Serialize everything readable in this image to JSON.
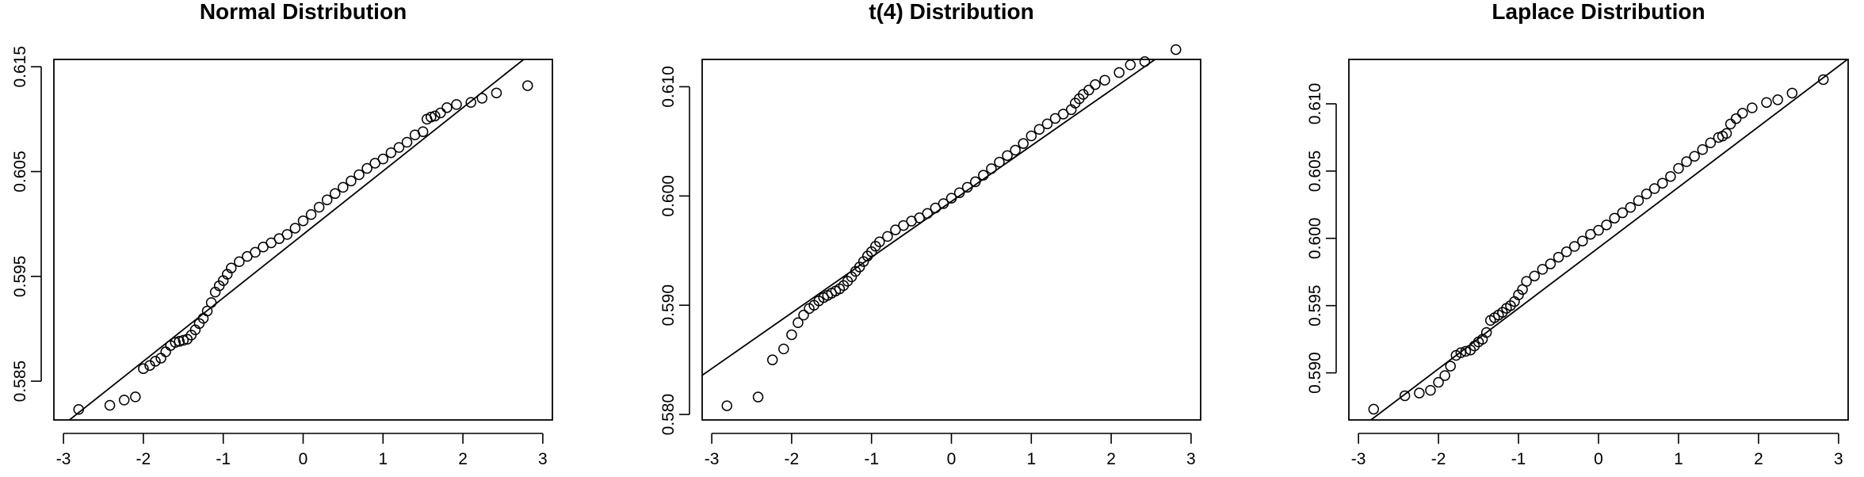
{
  "chart_data": [
    {
      "type": "scatter",
      "title": "Normal Distribution",
      "xlabel": "",
      "ylabel": "",
      "xlim": [
        -3.12,
        3.12
      ],
      "ylim": [
        0.5813,
        0.6157
      ],
      "xticks": [
        -3,
        -2,
        -1,
        0,
        1,
        2,
        3
      ],
      "xtick_labels": [
        "-3",
        "-2",
        "-1",
        "0",
        "1",
        "2",
        "3"
      ],
      "yticks": [
        0.585,
        0.595,
        0.605,
        0.615
      ],
      "ytick_labels": [
        "0.585",
        "0.595",
        "0.605",
        "0.615"
      ],
      "reference_line": {
        "intercept": 0.599,
        "slope": 0.00605
      },
      "points_x": [
        -2.81,
        -2.42,
        -2.24,
        -2.1,
        -2.0,
        -1.92,
        -1.85,
        -1.78,
        -1.72,
        -1.66,
        -1.6,
        -1.55,
        -1.5,
        -1.45,
        -1.4,
        -1.35,
        -1.3,
        -1.25,
        -1.2,
        -1.15,
        -1.1,
        -1.05,
        -1.0,
        -0.95,
        -0.9,
        -0.8,
        -0.7,
        -0.6,
        -0.5,
        -0.4,
        -0.3,
        -0.2,
        -0.1,
        0.0,
        0.1,
        0.2,
        0.3,
        0.4,
        0.5,
        0.6,
        0.7,
        0.8,
        0.9,
        1.0,
        1.1,
        1.2,
        1.3,
        1.4,
        1.5,
        1.55,
        1.6,
        1.65,
        1.72,
        1.8,
        1.92,
        2.1,
        2.24,
        2.42,
        2.81
      ],
      "points_y": [
        0.5823,
        0.5827,
        0.5832,
        0.5835,
        0.5862,
        0.5865,
        0.5869,
        0.5872,
        0.5878,
        0.5884,
        0.5887,
        0.5888,
        0.5889,
        0.589,
        0.5894,
        0.5899,
        0.5905,
        0.591,
        0.5917,
        0.5925,
        0.5935,
        0.5941,
        0.5946,
        0.5952,
        0.5958,
        0.5964,
        0.5969,
        0.5973,
        0.5978,
        0.5982,
        0.5986,
        0.599,
        0.5996,
        0.6003,
        0.6009,
        0.6016,
        0.6023,
        0.6029,
        0.6035,
        0.6041,
        0.6047,
        0.6053,
        0.6058,
        0.6062,
        0.6068,
        0.6073,
        0.6078,
        0.6085,
        0.6088,
        0.61,
        0.6102,
        0.6103,
        0.6106,
        0.6111,
        0.6114,
        0.6116,
        0.612,
        0.6125,
        0.6132
      ]
    },
    {
      "type": "scatter",
      "title": "t(4) Distribution",
      "xlabel": "",
      "ylabel": "",
      "xlim": [
        -3.12,
        3.12
      ],
      "ylim": [
        0.5795,
        0.6125
      ],
      "xticks": [
        -3,
        -2,
        -1,
        0,
        1,
        2,
        3
      ],
      "xtick_labels": [
        "-3",
        "-2",
        "-1",
        "0",
        "1",
        "2",
        "3"
      ],
      "yticks": [
        0.58,
        0.59,
        0.6,
        0.61
      ],
      "ytick_labels": [
        "0.580",
        "0.590",
        "0.600",
        "0.610"
      ],
      "reference_line": {
        "intercept": 0.5995,
        "slope": 0.0051
      },
      "points_x": [
        -2.81,
        -2.42,
        -2.24,
        -2.1,
        -2.0,
        -1.92,
        -1.85,
        -1.78,
        -1.72,
        -1.66,
        -1.6,
        -1.55,
        -1.5,
        -1.45,
        -1.4,
        -1.35,
        -1.3,
        -1.25,
        -1.2,
        -1.15,
        -1.1,
        -1.05,
        -1.0,
        -0.95,
        -0.9,
        -0.8,
        -0.7,
        -0.6,
        -0.5,
        -0.4,
        -0.3,
        -0.2,
        -0.1,
        0.0,
        0.1,
        0.2,
        0.3,
        0.4,
        0.5,
        0.6,
        0.7,
        0.8,
        0.9,
        1.0,
        1.1,
        1.2,
        1.3,
        1.4,
        1.5,
        1.55,
        1.6,
        1.65,
        1.72,
        1.8,
        1.92,
        2.1,
        2.24,
        2.42,
        2.81
      ],
      "points_y": [
        0.5808,
        0.5816,
        0.585,
        0.586,
        0.5873,
        0.5884,
        0.5891,
        0.5897,
        0.59,
        0.5904,
        0.5907,
        0.5909,
        0.5911,
        0.5913,
        0.5915,
        0.5918,
        0.5922,
        0.5926,
        0.5931,
        0.5935,
        0.594,
        0.5945,
        0.5949,
        0.5954,
        0.5958,
        0.5963,
        0.5969,
        0.5973,
        0.5977,
        0.598,
        0.5984,
        0.5989,
        0.5993,
        0.5998,
        0.6003,
        0.6008,
        0.6013,
        0.6019,
        0.6025,
        0.6031,
        0.6037,
        0.6042,
        0.6048,
        0.6055,
        0.6061,
        0.6066,
        0.6071,
        0.6075,
        0.6079,
        0.6085,
        0.6089,
        0.6093,
        0.6097,
        0.6102,
        0.6106,
        0.6113,
        0.612,
        0.6123,
        0.6134
      ]
    },
    {
      "type": "scatter",
      "title": "Laplace Distribution",
      "xlabel": "",
      "ylabel": "",
      "xlim": [
        -3.12,
        3.12
      ],
      "ylim": [
        0.5865,
        0.6133
      ],
      "xticks": [
        -3,
        -2,
        -1,
        0,
        1,
        2,
        3
      ],
      "xtick_labels": [
        "-3",
        "-2",
        "-1",
        "0",
        "1",
        "2",
        "3"
      ],
      "yticks": [
        0.59,
        0.595,
        0.6,
        0.605,
        0.61
      ],
      "ytick_labels": [
        "0.590",
        "0.595",
        "0.600",
        "0.605",
        "0.610"
      ],
      "reference_line": {
        "intercept": 0.5993,
        "slope": 0.0045
      },
      "points_x": [
        -2.81,
        -2.42,
        -2.24,
        -2.1,
        -2.0,
        -1.92,
        -1.85,
        -1.78,
        -1.72,
        -1.66,
        -1.6,
        -1.55,
        -1.5,
        -1.45,
        -1.4,
        -1.35,
        -1.3,
        -1.25,
        -1.2,
        -1.15,
        -1.1,
        -1.05,
        -1.0,
        -0.95,
        -0.9,
        -0.8,
        -0.7,
        -0.6,
        -0.5,
        -0.4,
        -0.3,
        -0.2,
        -0.1,
        0.0,
        0.1,
        0.2,
        0.3,
        0.4,
        0.5,
        0.6,
        0.7,
        0.8,
        0.9,
        1.0,
        1.1,
        1.2,
        1.3,
        1.4,
        1.5,
        1.55,
        1.6,
        1.65,
        1.72,
        1.8,
        1.92,
        2.1,
        2.24,
        2.42,
        2.81
      ],
      "points_y": [
        0.5873,
        0.5883,
        0.5885,
        0.5887,
        0.5893,
        0.5898,
        0.5905,
        0.5913,
        0.5915,
        0.5916,
        0.5917,
        0.592,
        0.5923,
        0.5925,
        0.593,
        0.5939,
        0.5941,
        0.5943,
        0.5945,
        0.5948,
        0.595,
        0.5953,
        0.5958,
        0.5962,
        0.5968,
        0.5972,
        0.5977,
        0.5981,
        0.5986,
        0.599,
        0.5994,
        0.5998,
        0.6003,
        0.6006,
        0.601,
        0.6015,
        0.6019,
        0.6023,
        0.6028,
        0.6033,
        0.6037,
        0.6041,
        0.6046,
        0.6052,
        0.6057,
        0.6061,
        0.6066,
        0.6071,
        0.6075,
        0.6076,
        0.6078,
        0.6085,
        0.6089,
        0.6093,
        0.6097,
        0.6101,
        0.6103,
        0.6108,
        0.6118
      ]
    }
  ]
}
